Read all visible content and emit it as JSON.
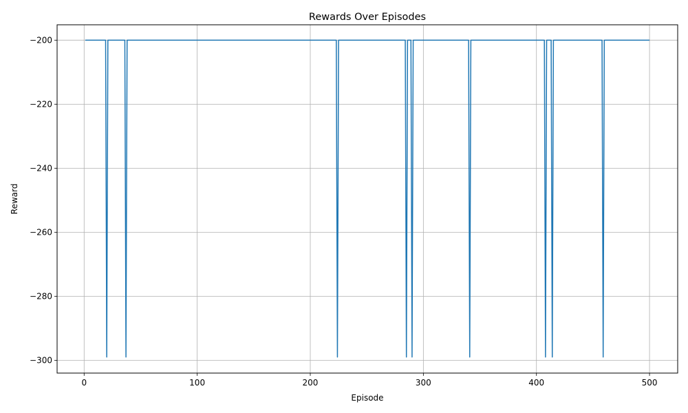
{
  "chart_data": {
    "type": "line",
    "title": "Rewards Over Episodes",
    "xlabel": "Episode",
    "ylabel": "Reward",
    "xlim": [
      -23.9,
      524.9
    ],
    "ylim": [
      -304,
      -195.2
    ],
    "xticks": [
      0,
      100,
      200,
      300,
      400,
      500
    ],
    "yticks": [
      -300,
      -280,
      -260,
      -240,
      -220,
      -200
    ],
    "xtick_labels": [
      "0",
      "100",
      "200",
      "300",
      "400",
      "500"
    ],
    "ytick_labels": [
      "−300",
      "−280",
      "−260",
      "−240",
      "−220",
      "−200"
    ],
    "grid": true,
    "legend": "none",
    "series": [
      {
        "color": "#1f77b4",
        "baseline": -200,
        "x_range": [
          1,
          500
        ],
        "dips": [
          {
            "x": 20,
            "y": -299
          },
          {
            "x": 37,
            "y": -299
          },
          {
            "x": 224,
            "y": -299
          },
          {
            "x": 285,
            "y": -299
          },
          {
            "x": 290,
            "y": -299
          },
          {
            "x": 341,
            "y": -299
          },
          {
            "x": 408,
            "y": -299
          },
          {
            "x": 414,
            "y": -299
          },
          {
            "x": 459,
            "y": -299
          }
        ]
      }
    ]
  }
}
